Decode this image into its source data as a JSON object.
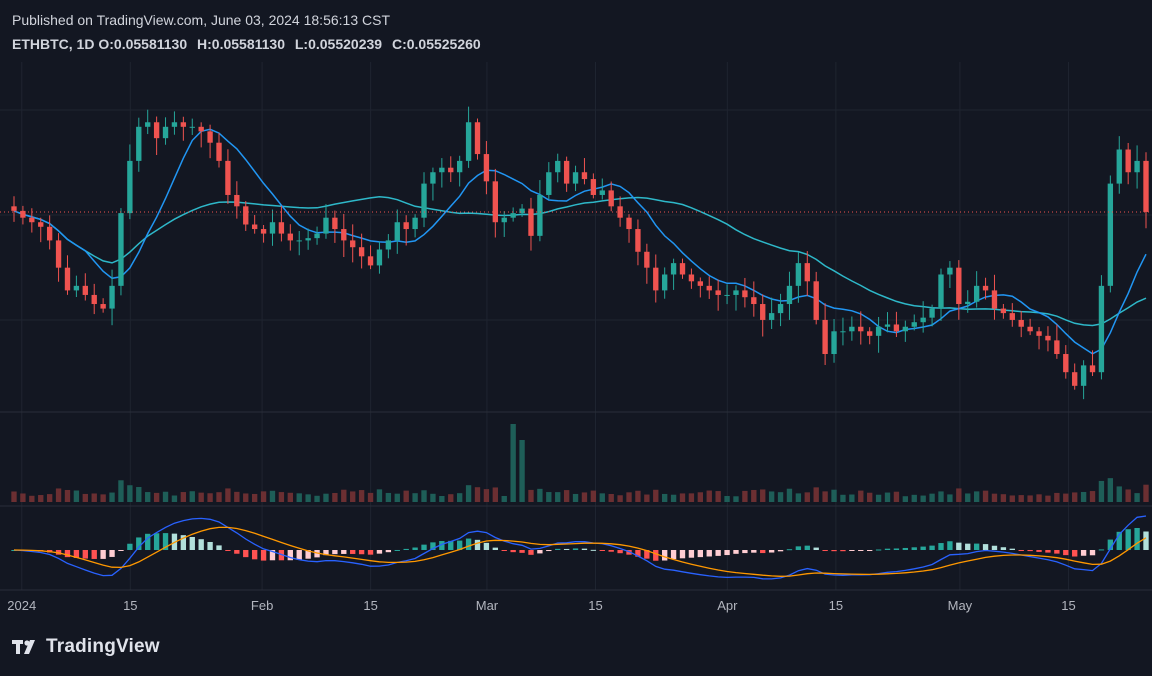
{
  "header": {
    "published": "Published on TradingView.com, June 03, 2024 18:56:13 CST",
    "symbol": "ETHBTC, 1D",
    "ohlc": [
      {
        "key": "O:",
        "value": "0.05581130"
      },
      {
        "key": "H:",
        "value": "0.05581130"
      },
      {
        "key": "L:",
        "value": "0.05520239"
      },
      {
        "key": "C:",
        "value": "0.05525260"
      }
    ]
  },
  "footer": {
    "brand": "TradingView",
    "logo_icon": "tradingview-logo-icon"
  },
  "colors": {
    "background": "#131722",
    "up": "#26a69a",
    "down": "#ef5350",
    "ma_fast": "#2196f3",
    "ma_slow": "#2eb8c9",
    "macd_line": "#2962ff",
    "signal_line": "#ff9800",
    "last_price_line": "#ef5350",
    "axis_text": "#b2b5be"
  },
  "chart_data": {
    "type": "candlestick",
    "interval": "1D",
    "x_tick_labels": [
      "2024",
      "15",
      "Feb",
      "15",
      "Mar",
      "15",
      "Apr",
      "15",
      "May",
      "15"
    ],
    "x_tick_dates": [
      "2024-01-01",
      "2024-01-15",
      "2024-02-01",
      "2024-02-15",
      "2024-03-01",
      "2024-03-15",
      "2024-04-01",
      "2024-04-15",
      "2024-05-01",
      "2024-05-15"
    ],
    "date_range": [
      "2023-12-31",
      "2024-05-25"
    ],
    "last_close": 0.0552526,
    "closes": [
      0.0553,
      0.055,
      0.0548,
      0.0546,
      0.054,
      0.0528,
      0.0518,
      0.052,
      0.0516,
      0.0512,
      0.051,
      0.052,
      0.0552,
      0.0575,
      0.059,
      0.0592,
      0.0585,
      0.059,
      0.0592,
      0.059,
      0.059,
      0.0588,
      0.0583,
      0.0575,
      0.056,
      0.0555,
      0.0547,
      0.0545,
      0.0543,
      0.0548,
      0.0543,
      0.054,
      0.054,
      0.0541,
      0.0543,
      0.055,
      0.0545,
      0.054,
      0.0537,
      0.0533,
      0.0529,
      0.0536,
      0.054,
      0.0548,
      0.0545,
      0.055,
      0.0565,
      0.057,
      0.0572,
      0.057,
      0.0575,
      0.0592,
      0.0578,
      0.0566,
      0.0548,
      0.055,
      0.0552,
      0.0554,
      0.0542,
      0.056,
      0.057,
      0.0575,
      0.0565,
      0.057,
      0.0567,
      0.056,
      0.0562,
      0.0555,
      0.055,
      0.0545,
      0.0535,
      0.0528,
      0.0518,
      0.0525,
      0.053,
      0.0525,
      0.0522,
      0.052,
      0.0518,
      0.0516,
      0.0516,
      0.0518,
      0.0515,
      0.0512,
      0.0505,
      0.0508,
      0.0512,
      0.052,
      0.053,
      0.0522,
      0.0505,
      0.049,
      0.05,
      0.05,
      0.0502,
      0.05,
      0.0498,
      0.0502,
      0.0503,
      0.05,
      0.0502,
      0.0504,
      0.0506,
      0.051,
      0.0525,
      0.0528,
      0.0512,
      0.0513,
      0.052,
      0.0518,
      0.051,
      0.0508,
      0.0505,
      0.0502,
      0.05,
      0.0498,
      0.0496,
      0.049,
      0.0482,
      0.0476,
      0.0485,
      0.0482,
      0.052,
      0.0565,
      0.058,
      0.057,
      0.0575,
      0.0552526
    ],
    "ma_fast_period_days": 9,
    "ma_slow_period_days": 30,
    "macd": {
      "fast": 12,
      "slow": 26,
      "signal": 9
    }
  }
}
